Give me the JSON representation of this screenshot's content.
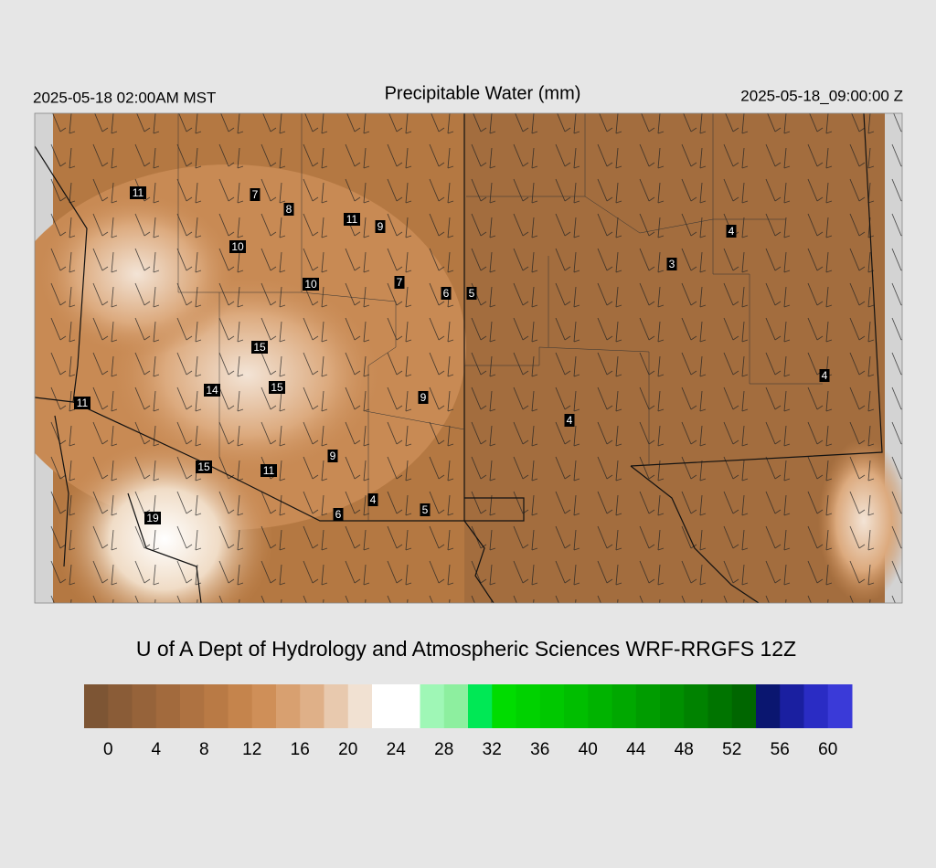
{
  "header": {
    "left": "2025-05-18 02:00AM MST",
    "title": "Precipitable Water (mm)",
    "right": "2025-05-18_09:00:00 Z"
  },
  "stations": [
    11,
    7,
    8,
    11,
    9,
    10,
    10,
    7,
    6,
    5,
    4,
    3,
    15,
    15,
    14,
    11,
    9,
    4,
    4,
    9,
    15,
    11,
    4,
    5,
    6,
    19
  ],
  "credit": "U of A Dept of Hydrology and Atmospheric Sciences WRF-RRGFS 12Z",
  "colorbar": {
    "range": [
      -2,
      62
    ],
    "ticks": [
      0,
      4,
      8,
      12,
      16,
      20,
      24,
      28,
      32,
      36,
      40,
      44,
      48,
      52,
      56,
      60
    ],
    "colors": [
      "#7d5534",
      "#8a5c37",
      "#96633a",
      "#a26a3d",
      "#ae7241",
      "#b97a45",
      "#c5844c",
      "#cf8f58",
      "#d8a070",
      "#dfb088",
      "#e8c9ae",
      "#f1e1d2",
      "#ffffff",
      "#ffffff",
      "#9ff7b6",
      "#8def9f",
      "#00e855",
      "#00dc00",
      "#00d200",
      "#00c800",
      "#00be00",
      "#00b300",
      "#00a800",
      "#009c00",
      "#008f00",
      "#008200",
      "#007400",
      "#006600",
      "#0a1670",
      "#1a1fa0",
      "#2a2cc4",
      "#3a3ad8"
    ]
  }
}
